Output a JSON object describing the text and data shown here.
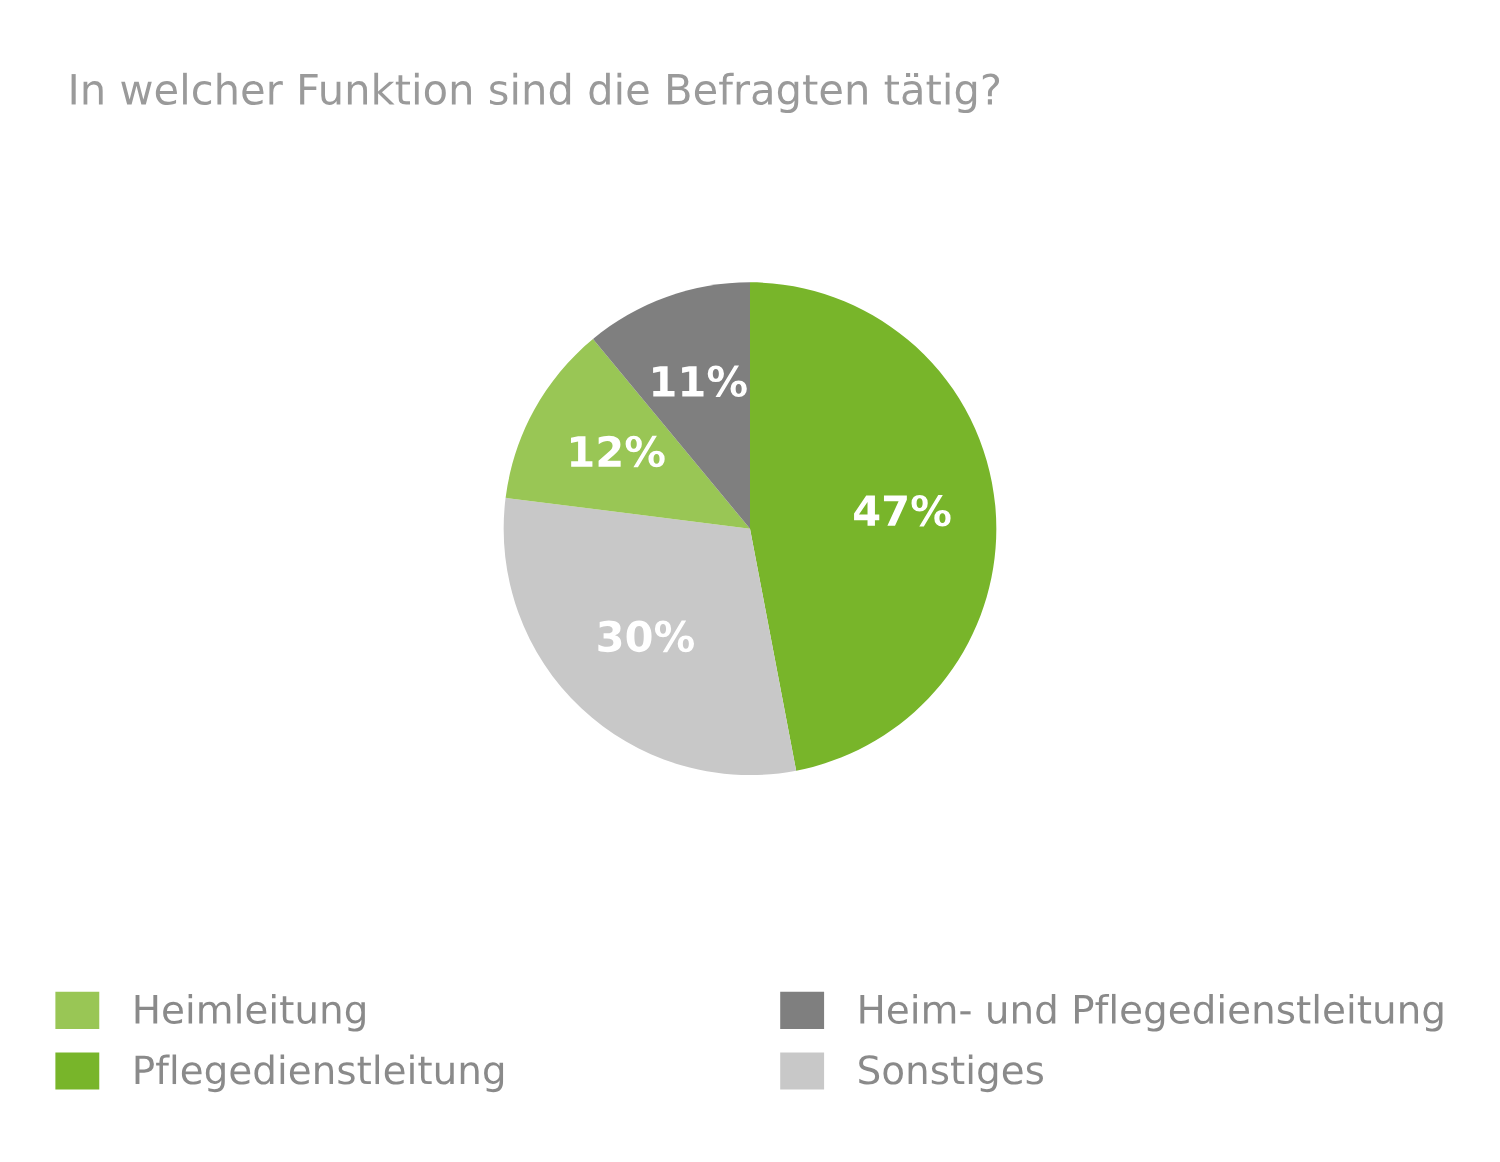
{
  "chart_data": {
    "type": "pie",
    "title": "In welcher Funktion sind die Befragten tätig?",
    "categories": [
      "Pflegedienstleitung",
      "Sonstiges",
      "Heimleitung",
      "Heim- und Pflegedienstleitung"
    ],
    "values": [
      47,
      30,
      12,
      11
    ],
    "colors": [
      "#78b52a",
      "#c8c8c8",
      "#99c655",
      "#7f7f7f"
    ],
    "value_labels": [
      "47%",
      "30%",
      "12%",
      "11%"
    ],
    "legend": "bottom"
  }
}
